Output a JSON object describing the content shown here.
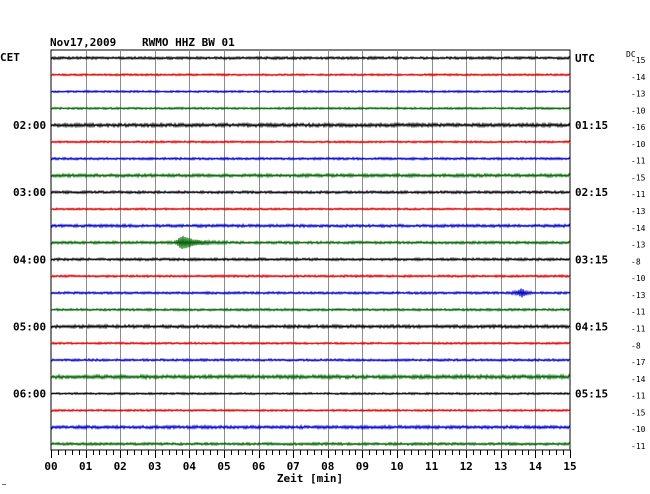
{
  "header": {
    "date": "Nov17,2009",
    "station": "RWMO HHZ BW 01",
    "left_zone": "CET",
    "right_zone": "UTC",
    "dc_label": "DC"
  },
  "chart_data": {
    "type": "line",
    "title": "Nov17,2009   RWMO HHZ BW 01",
    "xlabel": "Zeit [min]",
    "xlim": [
      0,
      15
    ],
    "x_ticks": [
      "00",
      "01",
      "02",
      "03",
      "04",
      "05",
      "06",
      "07",
      "08",
      "09",
      "10",
      "11",
      "12",
      "13",
      "14",
      "15"
    ],
    "trace_colors": [
      "#000000",
      "#e00000",
      "#0000c8",
      "#006400"
    ],
    "trace_count": 24,
    "left_hour_labels": [
      {
        "trace": 4,
        "label": "02:00"
      },
      {
        "trace": 8,
        "label": "03:00"
      },
      {
        "trace": 12,
        "label": "04:00"
      },
      {
        "trace": 16,
        "label": "05:00"
      },
      {
        "trace": 20,
        "label": "06:00"
      }
    ],
    "right_hour_labels": [
      {
        "trace": 0,
        "label": "UTC"
      },
      {
        "trace": 4,
        "label": "01:15"
      },
      {
        "trace": 8,
        "label": "02:15"
      },
      {
        "trace": 12,
        "label": "03:15"
      },
      {
        "trace": 16,
        "label": "04:15"
      },
      {
        "trace": 20,
        "label": "05:15"
      }
    ],
    "dc_offsets": [
      "-15",
      "-14",
      "-13",
      "-10",
      "-16",
      "-10",
      "-11",
      "-15",
      "-11",
      "-13",
      "-14",
      "-13",
      "-8",
      "-10",
      "-13",
      "-11",
      "-11",
      "-8",
      "-17",
      "-14",
      "-11",
      "-15",
      "-10",
      "-11"
    ],
    "events": [
      {
        "trace": 11,
        "minute": 3.8,
        "amplitude": "large"
      },
      {
        "trace": 14,
        "minute": 13.6,
        "amplitude": "small"
      }
    ],
    "noise": [
      0.9,
      0.7,
      0.7,
      0.7,
      1.2,
      0.7,
      0.8,
      1.1,
      0.9,
      0.7,
      1.0,
      0.9,
      0.9,
      0.8,
      0.8,
      0.8,
      1.1,
      0.7,
      0.8,
      1.3,
      0.7,
      0.7,
      1.1,
      0.9
    ],
    "grid": true,
    "marks": "none"
  },
  "corner_mark": "~"
}
